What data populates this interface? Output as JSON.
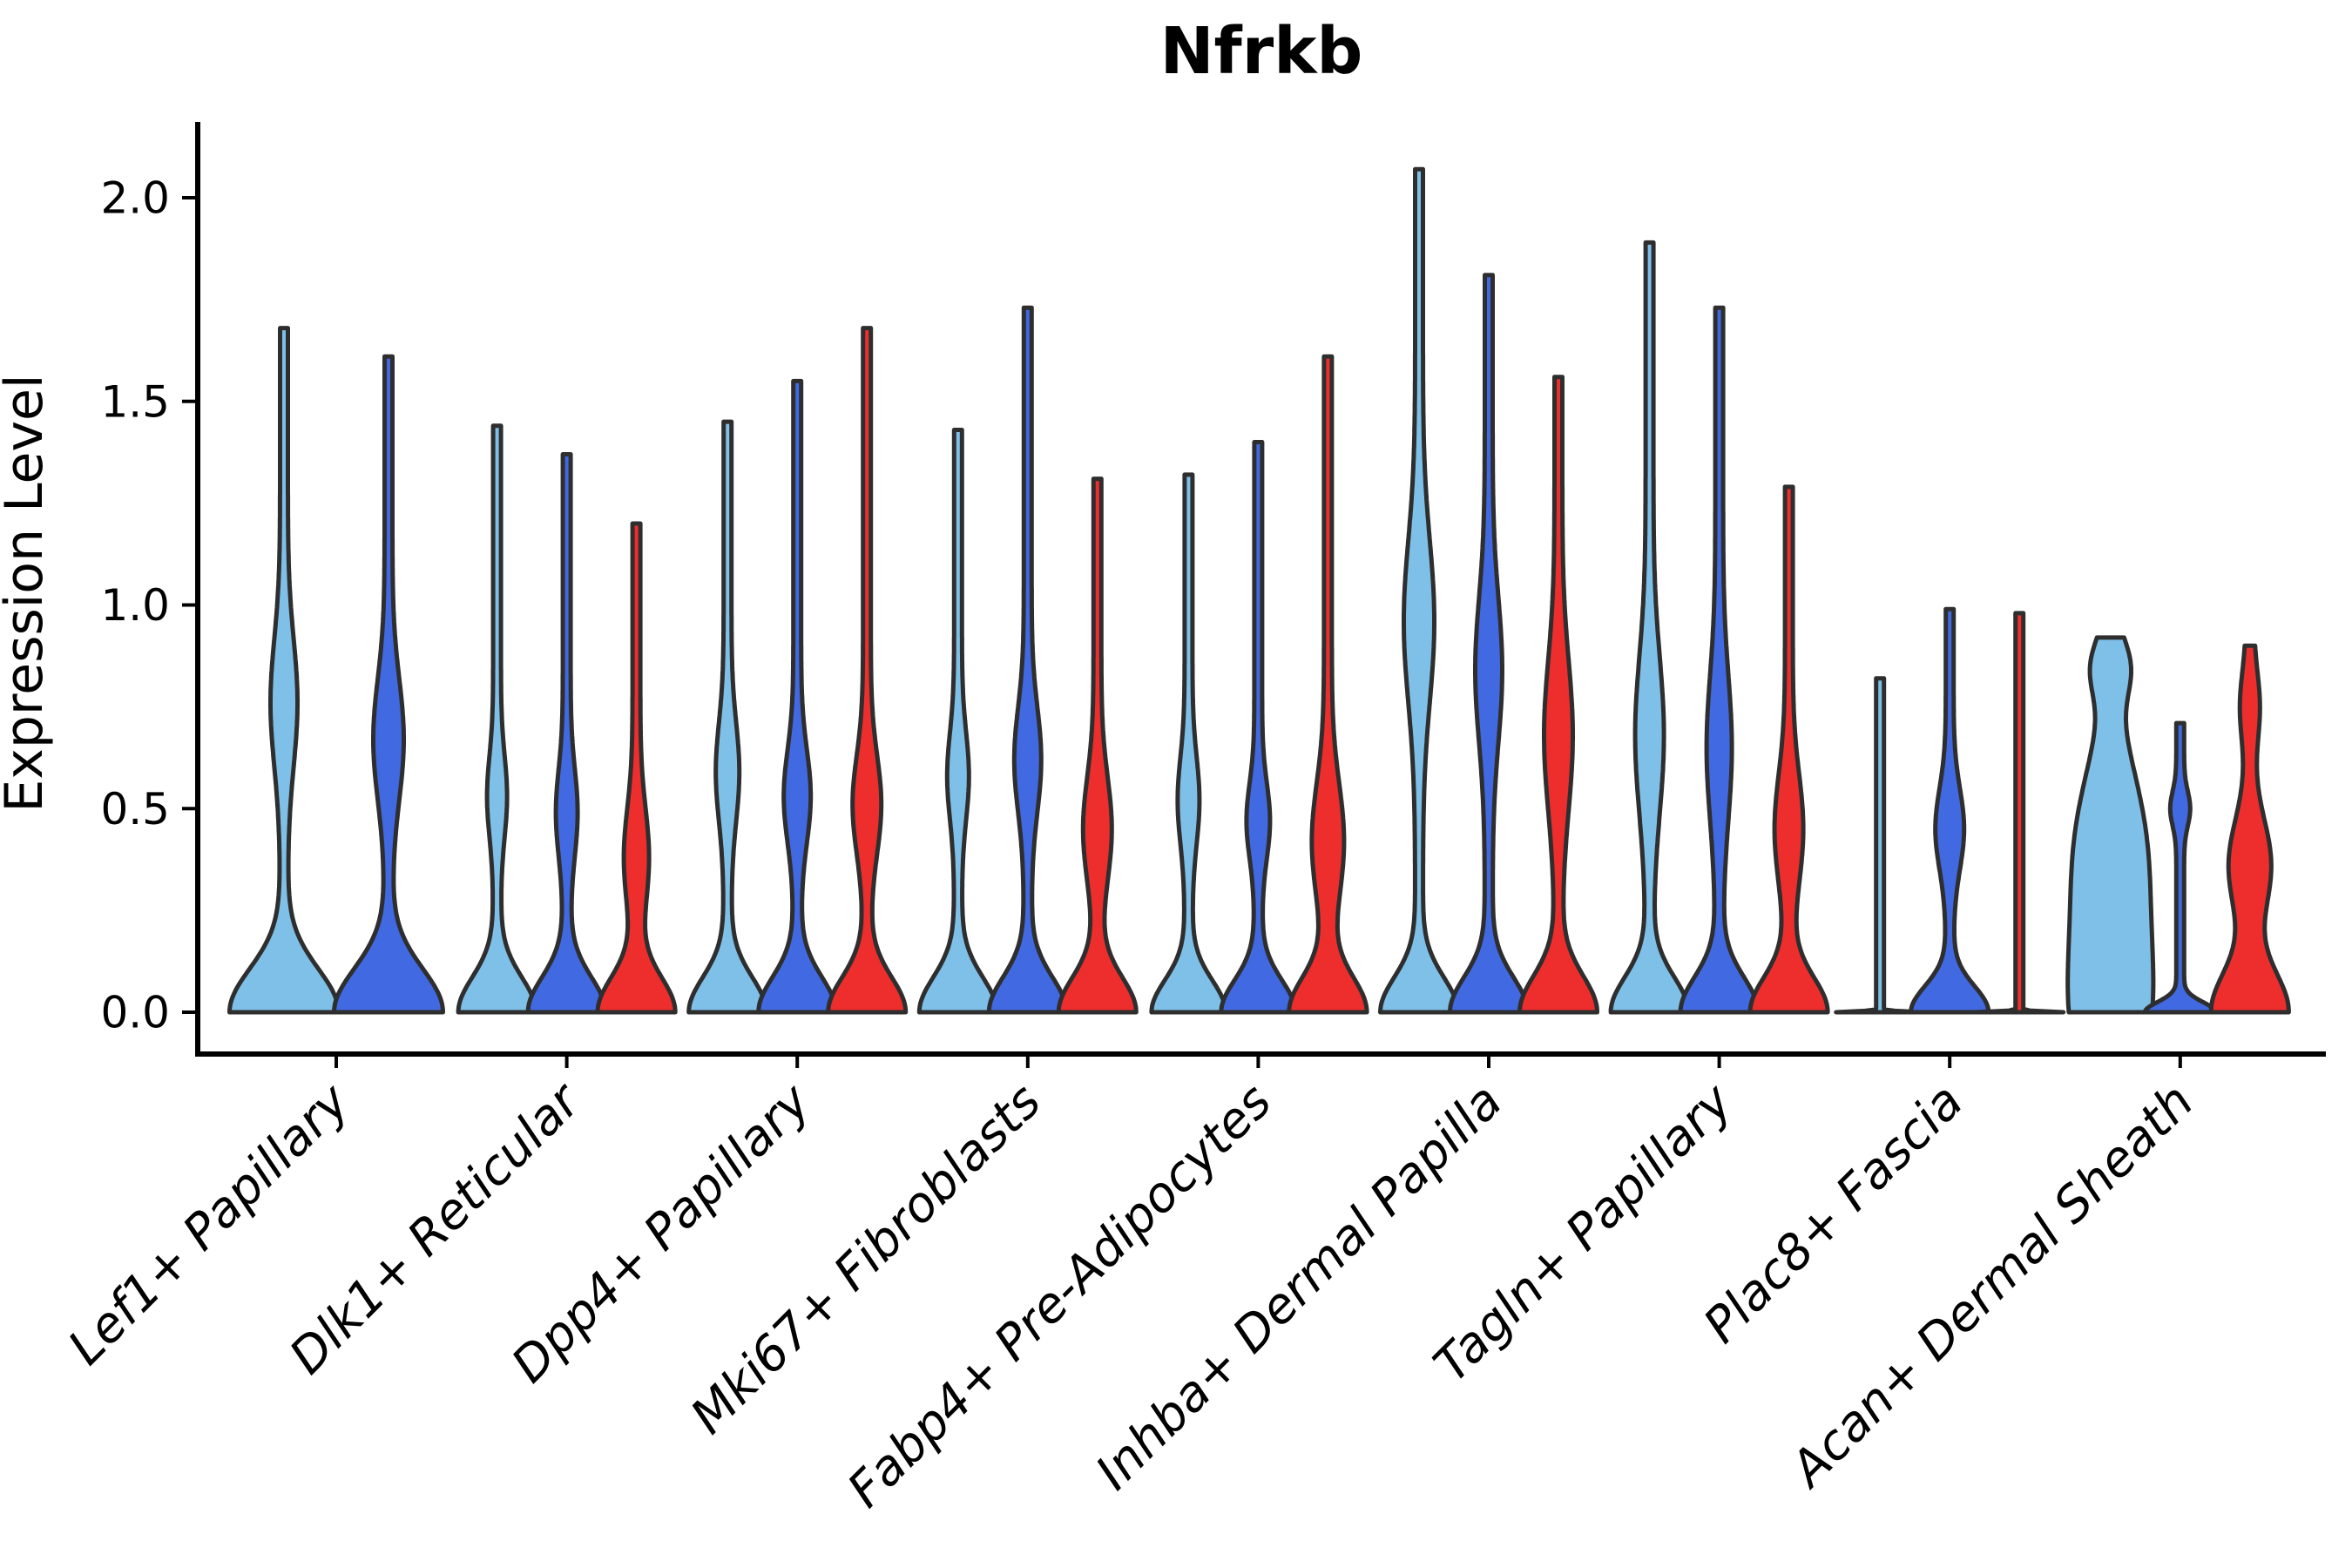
{
  "chart_data": {
    "type": "violin",
    "title": "Nfrkb",
    "ylabel": "Expression Level",
    "xlabel": "",
    "y_ticks": [
      0.0,
      0.5,
      1.0,
      1.5,
      2.0
    ],
    "y_tick_labels": [
      "0.0",
      "0.5",
      "1.0",
      "1.5",
      "2.0"
    ],
    "ylim": [
      0,
      2.19
    ],
    "grid": false,
    "legend": "none",
    "colors": {
      "light_blue": "#7EC0E8",
      "dark_blue": "#4169E1",
      "red": "#EE2D2D",
      "outline": "#2E2E2E",
      "axis": "#000000"
    },
    "categories": [
      "Lef1+ Papillary",
      "Dlk1+ Reticular",
      "Dpp4+ Papillary",
      "Mki67+ Fibroblasts",
      "Fabp4+ Pre-Adipocytes",
      "Inhba+ Dermal Papilla",
      "Tagln+ Papillary",
      "Plac8+ Fascia",
      "Acan+ Dermal Sheath"
    ],
    "groups": [
      {
        "category": "Lef1+ Papillary",
        "violins": [
          {
            "color_key": "light_blue",
            "max_expression": 1.68,
            "peak_density_at": 0.76,
            "profile": [
              [
                58,
                0,
                0.15
              ],
              [
                11,
                0.76,
                0.22
              ]
            ]
          },
          {
            "color_key": "dark_blue",
            "max_expression": 1.61,
            "peak_density_at": 0.67,
            "profile": [
              [
                58,
                0,
                0.15
              ],
              [
                13,
                0.67,
                0.21
              ]
            ]
          }
        ]
      },
      {
        "category": "Dlk1+ Reticular",
        "violins": [
          {
            "color_key": "light_blue",
            "max_expression": 1.44,
            "peak_density_at": 0.53,
            "profile": [
              [
                40,
                0,
                0.12
              ],
              [
                7,
                0.53,
                0.14
              ]
            ]
          },
          {
            "color_key": "dark_blue",
            "max_expression": 1.37,
            "peak_density_at": 0.49,
            "profile": [
              [
                40,
                0,
                0.12
              ],
              [
                8,
                0.49,
                0.15
              ]
            ]
          },
          {
            "color_key": "red",
            "max_expression": 1.2,
            "peak_density_at": 0.38,
            "profile": [
              [
                40,
                0,
                0.12
              ],
              [
                10,
                0.38,
                0.17
              ]
            ]
          }
        ]
      },
      {
        "category": "Dpp4+ Papillary",
        "violins": [
          {
            "color_key": "light_blue",
            "max_expression": 1.45,
            "peak_density_at": 0.59,
            "profile": [
              [
                40,
                0,
                0.12
              ],
              [
                9,
                0.59,
                0.17
              ]
            ]
          },
          {
            "color_key": "dark_blue",
            "max_expression": 1.55,
            "peak_density_at": 0.53,
            "profile": [
              [
                40,
                0,
                0.12
              ],
              [
                11,
                0.53,
                0.16
              ]
            ]
          },
          {
            "color_key": "red",
            "max_expression": 1.68,
            "peak_density_at": 0.51,
            "profile": [
              [
                40,
                0,
                0.12
              ],
              [
                12,
                0.51,
                0.17
              ]
            ]
          }
        ]
      },
      {
        "category": "Mki67+ Fibroblasts",
        "violins": [
          {
            "color_key": "light_blue",
            "max_expression": 1.43,
            "peak_density_at": 0.58,
            "profile": [
              [
                40,
                0,
                0.12
              ],
              [
                8,
                0.58,
                0.15
              ]
            ]
          },
          {
            "color_key": "dark_blue",
            "max_expression": 1.73,
            "peak_density_at": 0.62,
            "profile": [
              [
                40,
                0,
                0.12
              ],
              [
                11,
                0.62,
                0.18
              ]
            ]
          },
          {
            "color_key": "red",
            "max_expression": 1.31,
            "peak_density_at": 0.45,
            "profile": [
              [
                40,
                0,
                0.12
              ],
              [
                12,
                0.45,
                0.18
              ]
            ]
          }
        ]
      },
      {
        "category": "Fabp4+ Pre-Adipocytes",
        "violins": [
          {
            "color_key": "light_blue",
            "max_expression": 1.32,
            "peak_density_at": 0.52,
            "profile": [
              [
                38,
                0,
                0.11
              ],
              [
                8,
                0.52,
                0.15
              ]
            ]
          },
          {
            "color_key": "dark_blue",
            "max_expression": 1.4,
            "peak_density_at": 0.47,
            "profile": [
              [
                38,
                0,
                0.11
              ],
              [
                9,
                0.47,
                0.13
              ]
            ]
          },
          {
            "color_key": "red",
            "max_expression": 1.61,
            "peak_density_at": 0.42,
            "profile": [
              [
                40,
                0,
                0.12
              ],
              [
                14,
                0.42,
                0.2
              ]
            ]
          }
        ]
      },
      {
        "category": "Inhba+ Dermal Papilla",
        "violins": [
          {
            "color_key": "light_blue",
            "max_expression": 2.07,
            "peak_density_at": 0.96,
            "profile": [
              [
                40,
                0,
                0.12
              ],
              [
                13,
                0.96,
                0.28
              ]
            ]
          },
          {
            "color_key": "dark_blue",
            "max_expression": 1.81,
            "peak_density_at": 0.84,
            "profile": [
              [
                40,
                0,
                0.12
              ],
              [
                11,
                0.84,
                0.25
              ]
            ]
          },
          {
            "color_key": "red",
            "max_expression": 1.56,
            "peak_density_at": 0.68,
            "profile": [
              [
                40,
                0,
                0.125
              ],
              [
                12,
                0.68,
                0.26
              ]
            ]
          }
        ]
      },
      {
        "category": "Tagln+ Papillary",
        "violins": [
          {
            "color_key": "light_blue",
            "max_expression": 1.89,
            "peak_density_at": 0.68,
            "profile": [
              [
                40,
                0,
                0.12
              ],
              [
                12,
                0.68,
                0.27
              ]
            ]
          },
          {
            "color_key": "dark_blue",
            "max_expression": 1.73,
            "peak_density_at": 0.65,
            "profile": [
              [
                40,
                0,
                0.12
              ],
              [
                10,
                0.65,
                0.25
              ]
            ]
          },
          {
            "color_key": "red",
            "max_expression": 1.29,
            "peak_density_at": 0.45,
            "profile": [
              [
                40,
                0,
                0.12
              ],
              [
                12,
                0.45,
                0.19
              ]
            ]
          }
        ]
      },
      {
        "category": "Plac8+ Fascia",
        "violins": [
          {
            "color_key": "light_blue",
            "max_expression": 0.82,
            "peak_density_at": 0.0,
            "profile": [
              [
                46,
                0,
                0.003
              ]
            ]
          },
          {
            "color_key": "dark_blue",
            "max_expression": 0.99,
            "peak_density_at": 0.45,
            "profile": [
              [
                40,
                0,
                0.09
              ],
              [
                12,
                0.45,
                0.14
              ]
            ]
          },
          {
            "color_key": "red",
            "max_expression": 0.98,
            "peak_density_at": 0.0,
            "profile": [
              [
                46,
                0,
                0.003
              ]
            ]
          }
        ]
      },
      {
        "category": "Acan+ Dermal Sheath",
        "violins": [
          {
            "color_key": "light_blue",
            "max_expression": 0.92,
            "peak_density_at": 0.42,
            "profile": [
              [
                40,
                0,
                0.3
              ],
              [
                32,
                0.42,
                0.28
              ],
              [
                16,
                0.85,
                0.1
              ]
            ]
          },
          {
            "color_key": "dark_blue",
            "max_expression": 0.71,
            "peak_density_at": 0.5,
            "profile": [
              [
                36,
                0,
                0.035
              ],
              [
                7,
                0.5,
                0.06
              ]
            ]
          },
          {
            "color_key": "red",
            "max_expression": 0.9,
            "peak_density_at": 0.36,
            "profile": [
              [
                40,
                0,
                0.14
              ],
              [
                20,
                0.36,
                0.16
              ],
              [
                7,
                0.75,
                0.12
              ]
            ]
          }
        ]
      }
    ]
  }
}
